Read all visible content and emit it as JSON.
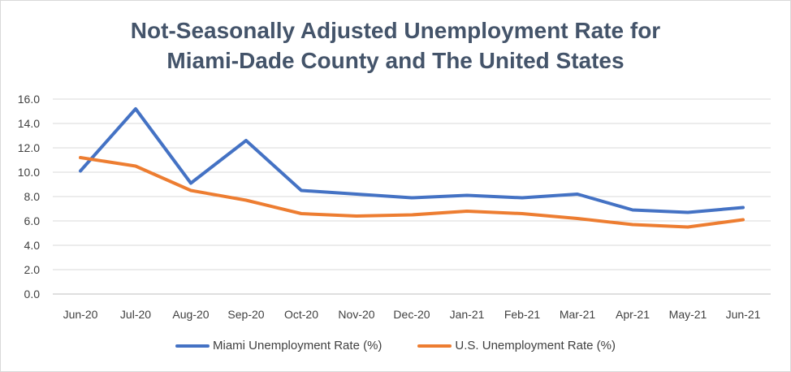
{
  "chart_data": {
    "type": "line",
    "title_lines": [
      "Not-Seasonally Adjusted Unemployment Rate for",
      "Miami-Dade County and The United States"
    ],
    "categories": [
      "Jun-20",
      "Jul-20",
      "Aug-20",
      "Sep-20",
      "Oct-20",
      "Nov-20",
      "Dec-20",
      "Jan-21",
      "Feb-21",
      "Mar-21",
      "Apr-21",
      "May-21",
      "Jun-21"
    ],
    "ylim": [
      0,
      16
    ],
    "ytick_labels": [
      "0.0",
      "2.0",
      "4.0",
      "6.0",
      "8.0",
      "10.0",
      "12.0",
      "14.0",
      "16.0"
    ],
    "grid": true,
    "legend_position": "bottom",
    "series": [
      {
        "name": "Miami Unemployment Rate (%)",
        "color": "#4472c4",
        "values": [
          10.1,
          15.2,
          9.1,
          12.6,
          8.5,
          8.2,
          7.9,
          8.1,
          7.9,
          8.2,
          6.9,
          6.7,
          7.1
        ]
      },
      {
        "name": "U.S. Unemployment Rate (%)",
        "color": "#ed7d31",
        "values": [
          11.2,
          10.5,
          8.5,
          7.7,
          6.6,
          6.4,
          6.5,
          6.8,
          6.6,
          6.2,
          5.7,
          5.5,
          6.1
        ]
      }
    ]
  }
}
